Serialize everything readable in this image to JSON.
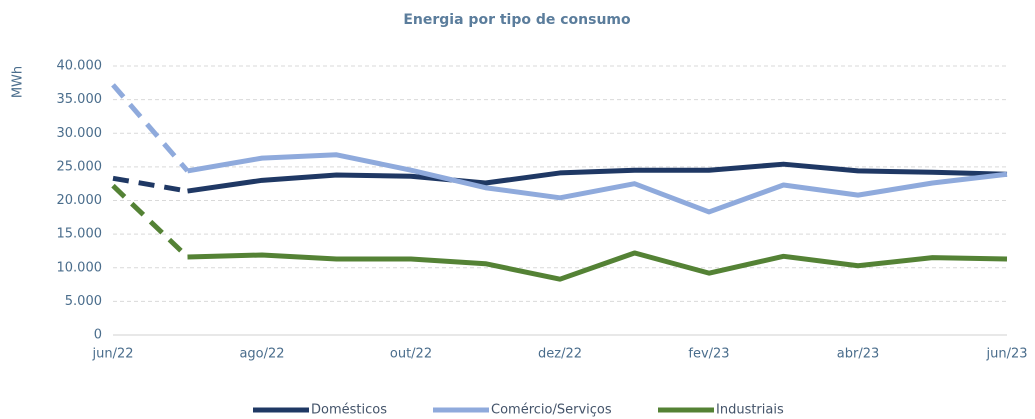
{
  "chart_data": {
    "type": "line",
    "title": "Energia por tipo de consumo",
    "y_label": "MWh",
    "categories": [
      "jun/22",
      null,
      "ago/22",
      null,
      "out/22",
      null,
      "dez/22",
      null,
      "fev/23",
      null,
      "abr/23",
      null,
      "jun/23"
    ],
    "series": [
      {
        "name": "Domésticos",
        "color": "#1f3864",
        "values": [
          23.3,
          21.4,
          23.0,
          23.8,
          23.6,
          22.6,
          24.1,
          24.5,
          24.5,
          25.4,
          24.4,
          24.2,
          23.9
        ]
      },
      {
        "name": "Comércio/Serviços",
        "color": "#8faadc",
        "values": [
          37.2,
          24.4,
          26.3,
          26.8,
          24.5,
          21.9,
          20.4,
          22.5,
          18.3,
          22.3,
          20.8,
          22.6,
          23.9
        ]
      },
      {
        "name": "Industriais",
        "color": "#548235",
        "values": [
          22.2,
          11.6,
          11.9,
          11.3,
          11.3,
          10.6,
          8.3,
          12.2,
          9.2,
          11.7,
          10.3,
          11.5,
          11.3
        ]
      }
    ],
    "ylim": [
      0,
      40000
    ],
    "yticks": [
      0,
      {
        "value": 5000,
        "label": "5.000"
      },
      {
        "value": 10000,
        "label": "10.000"
      },
      {
        "value": 15000,
        "label": "15.000"
      },
      {
        "value": 20000,
        "label": "20.000"
      },
      {
        "value": 25000,
        "label": "25.000"
      },
      {
        "value": 30000,
        "label": "30.000"
      },
      {
        "value": 35000,
        "label": "35.000"
      },
      {
        "value": 40000,
        "label": "40.000"
      }
    ],
    "value_unit_scale": 1000,
    "dashed_first_segment": true,
    "grid": true,
    "legend": "bottom"
  }
}
